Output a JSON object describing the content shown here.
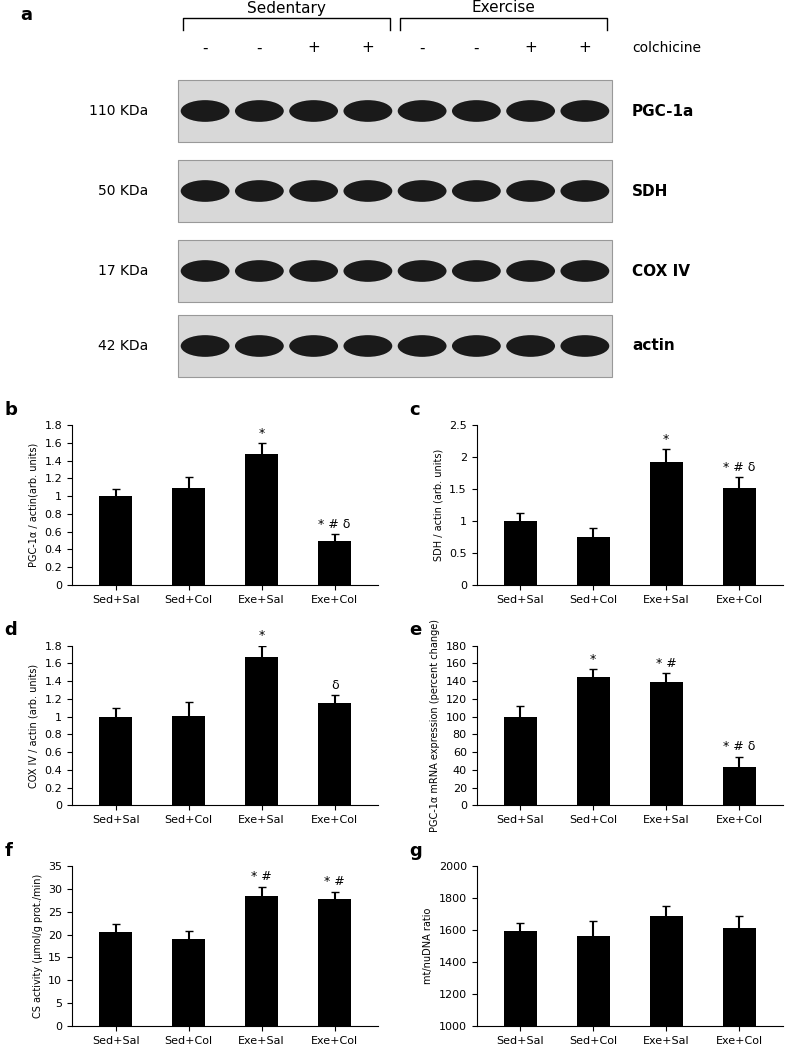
{
  "blot": {
    "panel": "a",
    "groups": [
      "Sedentary",
      "Exercise"
    ],
    "treatment_signs": [
      "-",
      "-",
      "+",
      "+",
      "-",
      "-",
      "+",
      "+"
    ],
    "treatment": "colchicine",
    "rows": [
      {
        "size": "110 KDa",
        "name": "PGC-1a"
      },
      {
        "size": "50 KDa",
        "name": "SDH"
      },
      {
        "size": "17 KDa",
        "name": "COX IV"
      },
      {
        "size": "42 KDa",
        "name": "actin"
      }
    ]
  },
  "chart_data": [
    {
      "type": "bar",
      "panel": "b",
      "y_label": "PGC-1α / actin(arb. units)",
      "categories": [
        "Sed+Sal",
        "Sed+Col",
        "Exe+Sal",
        "Exe+Col"
      ],
      "values": [
        1.0,
        1.09,
        1.47,
        0.49
      ],
      "errors": [
        0.08,
        0.13,
        0.13,
        0.08
      ],
      "annotations": [
        null,
        null,
        "*",
        "* # δ"
      ],
      "color": "#000000",
      "ylim": [
        0,
        1.8
      ],
      "yticks": [
        0,
        0.2,
        0.4,
        0.6,
        0.8,
        1,
        1.2,
        1.4,
        1.6,
        1.8
      ]
    },
    {
      "type": "bar",
      "panel": "c",
      "y_label": "SDH / actin (arb. units)",
      "categories": [
        "Sed+Sal",
        "Sed+Col",
        "Exe+Sal",
        "Exe+Col"
      ],
      "values": [
        1.0,
        0.75,
        1.93,
        1.51
      ],
      "errors": [
        0.12,
        0.14,
        0.19,
        0.18
      ],
      "annotations": [
        null,
        null,
        "*",
        "* # δ"
      ],
      "color": "#000000",
      "ylim": [
        0,
        2.5
      ],
      "yticks": [
        0,
        0.5,
        1,
        1.5,
        2,
        2.5
      ]
    },
    {
      "type": "bar",
      "panel": "d",
      "y_label": "COX IV / actin (arb. units)",
      "categories": [
        "Sed+Sal",
        "Sed+Col",
        "Exe+Sal",
        "Exe+Col"
      ],
      "values": [
        1.0,
        1.01,
        1.67,
        1.15
      ],
      "errors": [
        0.1,
        0.15,
        0.13,
        0.09
      ],
      "annotations": [
        null,
        null,
        "*",
        "δ"
      ],
      "color": "#000000",
      "ylim": [
        0,
        1.8
      ],
      "yticks": [
        0,
        0.2,
        0.4,
        0.6,
        0.8,
        1,
        1.2,
        1.4,
        1.6,
        1.8
      ]
    },
    {
      "type": "bar",
      "panel": "e",
      "y_label": "PGC-1α mRNA expression (percent change)",
      "categories": [
        "Sed+Sal",
        "Sed+Col",
        "Exe+Sal",
        "Exe+Col"
      ],
      "values": [
        100,
        145,
        139,
        43
      ],
      "errors": [
        12,
        9,
        10,
        12
      ],
      "annotations": [
        null,
        "*",
        "* #",
        "* # δ"
      ],
      "color": "#000000",
      "ylim": [
        0,
        180
      ],
      "yticks": [
        0,
        20,
        40,
        60,
        80,
        100,
        120,
        140,
        160,
        180
      ]
    },
    {
      "type": "bar",
      "panel": "f",
      "y_label": "CS activity (μmol/g prot./min)",
      "categories": [
        "Sed+Sal",
        "Sed+Col",
        "Exe+Sal",
        "Exe+Col"
      ],
      "values": [
        20.5,
        19,
        28.5,
        27.7
      ],
      "errors": [
        1.7,
        1.8,
        2,
        1.7
      ],
      "annotations": [
        null,
        null,
        "* #",
        "* #"
      ],
      "color": "#000000",
      "ylim": [
        0,
        35
      ],
      "yticks": [
        0,
        5,
        10,
        15,
        20,
        25,
        30,
        35
      ]
    },
    {
      "type": "bar",
      "panel": "g",
      "y_label": "mt/nuDNA ratio",
      "categories": [
        "Sed+Sal",
        "Sed+Col",
        "Exe+Sal",
        "Exe+Col"
      ],
      "values": [
        1595,
        1565,
        1690,
        1610
      ],
      "errors": [
        50,
        90,
        60,
        80
      ],
      "annotations": [
        null,
        null,
        null,
        null
      ],
      "color": "#000000",
      "ylim": [
        1000,
        2000
      ],
      "yticks": [
        1000,
        1200,
        1400,
        1600,
        1800,
        2000
      ]
    }
  ]
}
